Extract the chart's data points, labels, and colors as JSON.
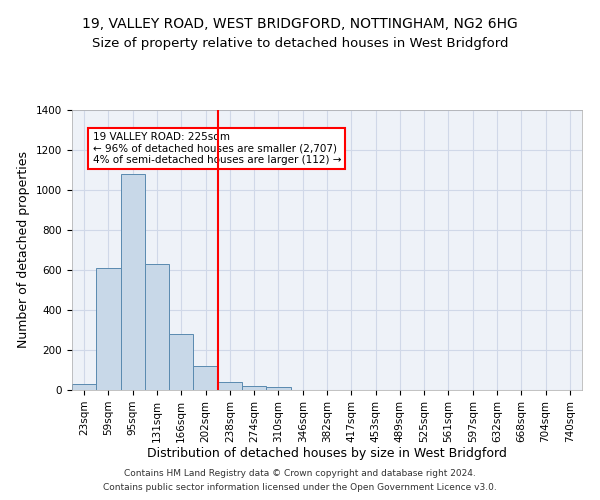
{
  "title_line1": "19, VALLEY ROAD, WEST BRIDGFORD, NOTTINGHAM, NG2 6HG",
  "title_line2": "Size of property relative to detached houses in West Bridgford",
  "xlabel": "Distribution of detached houses by size in West Bridgford",
  "ylabel": "Number of detached properties",
  "footnote1": "Contains HM Land Registry data © Crown copyright and database right 2024.",
  "footnote2": "Contains public sector information licensed under the Open Government Licence v3.0.",
  "bar_labels": [
    "23sqm",
    "59sqm",
    "95sqm",
    "131sqm",
    "166sqm",
    "202sqm",
    "238sqm",
    "274sqm",
    "310sqm",
    "346sqm",
    "382sqm",
    "417sqm",
    "453sqm",
    "489sqm",
    "525sqm",
    "561sqm",
    "597sqm",
    "632sqm",
    "668sqm",
    "704sqm",
    "740sqm"
  ],
  "bar_values": [
    28,
    610,
    1080,
    630,
    280,
    120,
    40,
    20,
    15,
    0,
    0,
    0,
    0,
    0,
    0,
    0,
    0,
    0,
    0,
    0,
    0
  ],
  "bar_color": "#c8d8e8",
  "bar_edge_color": "#5a8ab0",
  "vline_x": 5.5,
  "vline_color": "red",
  "annotation_text": "19 VALLEY ROAD: 225sqm\n← 96% of detached houses are smaller (2,707)\n4% of semi-detached houses are larger (112) →",
  "annotation_box_color": "white",
  "annotation_box_edge": "red",
  "ylim": [
    0,
    1400
  ],
  "yticks": [
    0,
    200,
    400,
    600,
    800,
    1000,
    1200,
    1400
  ],
  "grid_color": "#d0d8e8",
  "bg_color": "#eef2f8",
  "title_fontsize": 10,
  "subtitle_fontsize": 9.5,
  "axis_label_fontsize": 9,
  "tick_fontsize": 7.5,
  "footnote_fontsize": 6.5
}
